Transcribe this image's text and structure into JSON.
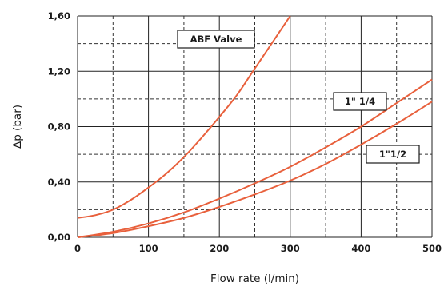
{
  "chart_data": {
    "type": "line",
    "xlabel": "Flow rate (l/min)",
    "ylabel": "Δp (bar)",
    "xlim": [
      0,
      500
    ],
    "ylim": [
      0,
      1.6
    ],
    "x_ticks": [
      "0",
      "100",
      "200",
      "300",
      "400",
      "500"
    ],
    "y_ticks": [
      "0,00",
      "0,40",
      "0,80",
      "1,20",
      "1,60"
    ],
    "grid": true,
    "line_color": "#e8603c",
    "series": [
      {
        "name": "ABF Valve",
        "x": [
          0,
          25,
          50,
          75,
          100,
          125,
          150,
          175,
          200,
          225,
          250,
          275,
          300
        ],
        "y": [
          0.14,
          0.16,
          0.2,
          0.27,
          0.36,
          0.46,
          0.58,
          0.72,
          0.87,
          1.03,
          1.22,
          1.41,
          1.6
        ]
      },
      {
        "name": "1\" 1/4",
        "x": [
          0,
          50,
          100,
          150,
          200,
          250,
          300,
          350,
          400,
          450,
          500
        ],
        "y": [
          0,
          0.04,
          0.1,
          0.18,
          0.28,
          0.39,
          0.51,
          0.65,
          0.8,
          0.97,
          1.14
        ]
      },
      {
        "name": "1\"1/2",
        "x": [
          0,
          50,
          100,
          150,
          200,
          250,
          300,
          350,
          400,
          450,
          500
        ],
        "y": [
          0,
          0.03,
          0.08,
          0.14,
          0.22,
          0.31,
          0.41,
          0.53,
          0.67,
          0.82,
          0.98
        ]
      }
    ]
  }
}
